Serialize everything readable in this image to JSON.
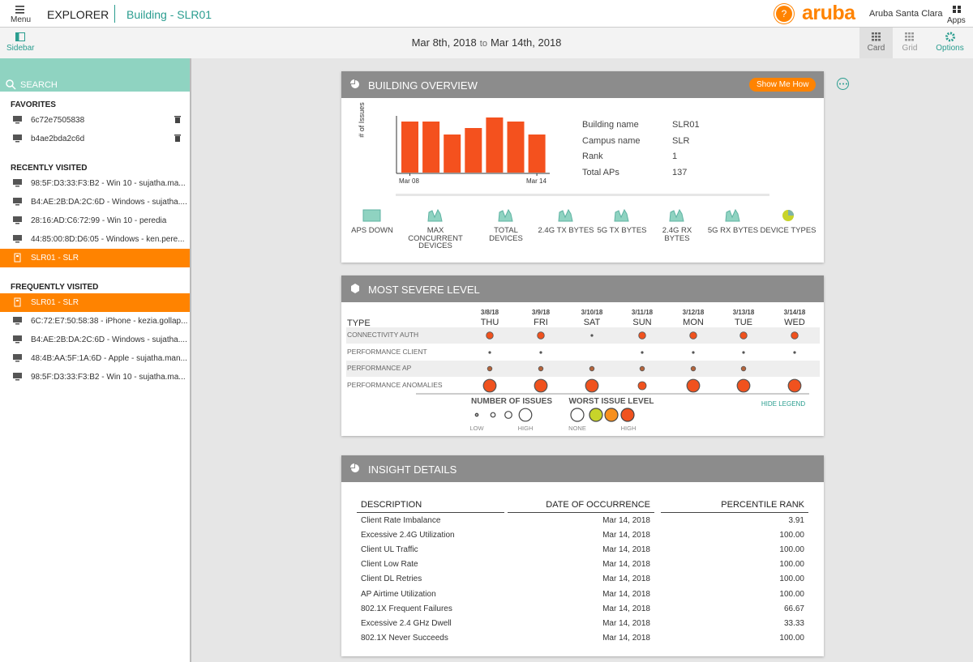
{
  "header": {
    "menu": "Menu",
    "app": "EXPLORER",
    "breadcrumb": "Building - SLR01",
    "help": "?",
    "brand": "aruba",
    "site": "Aruba Santa Clara",
    "apps": "Apps"
  },
  "toolbar": {
    "sidebar": "Sidebar",
    "date_from": "Mar 8th, 2018",
    "date_sep": "to",
    "date_to": "Mar 14th, 2018",
    "views": [
      "Card",
      "Grid",
      "Options"
    ]
  },
  "sidebar": {
    "search": "SEARCH",
    "sections": [
      {
        "title": "FAVORITES",
        "items": [
          {
            "text": "6c72e7505838",
            "icon": "device",
            "trash": true
          },
          {
            "text": "b4ae2bda2c6d",
            "icon": "device",
            "trash": true
          }
        ]
      },
      {
        "title": "RECENTLY VISITED",
        "items": [
          {
            "text": "98:5F:D3:33:F3:B2 - Win 10 - sujatha.ma...",
            "icon": "device"
          },
          {
            "text": "B4:AE:2B:DA:2C:6D - Windows - sujatha....",
            "icon": "device"
          },
          {
            "text": "28:16:AD:C6:72:99 - Win 10 - peredia",
            "icon": "device"
          },
          {
            "text": "44:85:00:8D:D6:05 - Windows - ken.pere...",
            "icon": "device"
          },
          {
            "text": "SLR01 - SLR",
            "icon": "building",
            "active": true
          }
        ]
      },
      {
        "title": "FREQUENTLY VISITED",
        "items": [
          {
            "text": "SLR01 - SLR",
            "icon": "building",
            "active": true
          },
          {
            "text": "6C:72:E7:50:58:38 - iPhone - kezia.gollap...",
            "icon": "device"
          },
          {
            "text": "B4:AE:2B:DA:2C:6D - Windows - sujatha....",
            "icon": "device"
          },
          {
            "text": "48:4B:AA:5F:1A:6D - Apple - sujatha.man...",
            "icon": "device"
          },
          {
            "text": "98:5F:D3:33:F3:B2 - Win 10 - sujatha.ma...",
            "icon": "device"
          }
        ]
      }
    ]
  },
  "overview": {
    "title": "BUILDING OVERVIEW",
    "button": "Show Me How",
    "chart_data": {
      "type": "bar",
      "y_label": "# of Issues",
      "x_start": "Mar 08",
      "x_end": "Mar 14",
      "values": [
        63,
        63,
        47,
        55,
        68,
        63,
        47
      ],
      "ylim": [
        0,
        75
      ],
      "color": "#f4511e"
    },
    "details": [
      {
        "label": "Building name",
        "value": "SLR01"
      },
      {
        "label": "Campus name",
        "value": "SLR"
      },
      {
        "label": "Rank",
        "value": "1"
      },
      {
        "label": "Total APs",
        "value": "137"
      }
    ],
    "metrics": [
      "APS DOWN",
      "MAX CONCURRENT DEVICES",
      "TOTAL DEVICES",
      "2.4G TX BYTES",
      "5G TX BYTES",
      "2.4G RX BYTES",
      "5G RX BYTES",
      "DEVICE TYPES"
    ]
  },
  "severity": {
    "title": "MOST SEVERE LEVEL",
    "type_header": "TYPE",
    "days": [
      {
        "date": "3/8/18",
        "day": "THU"
      },
      {
        "date": "3/9/18",
        "day": "FRI"
      },
      {
        "date": "3/10/18",
        "day": "SAT"
      },
      {
        "date": "3/11/18",
        "day": "SUN"
      },
      {
        "date": "3/12/18",
        "day": "MON"
      },
      {
        "date": "3/13/18",
        "day": "TUE"
      },
      {
        "date": "3/14/18",
        "day": "WED"
      }
    ],
    "rows": [
      {
        "name": "CONNECTIVITY AUTH",
        "issues": [
          3,
          3,
          1,
          3,
          3,
          3,
          3
        ]
      },
      {
        "name": "PERFORMANCE CLIENT",
        "issues": [
          1,
          1,
          null,
          1,
          1,
          1,
          1
        ]
      },
      {
        "name": "PERFORMANCE AP",
        "issues": [
          2,
          2,
          2,
          2,
          2,
          2,
          null
        ]
      },
      {
        "name": "PERFORMANCE ANOMALIES",
        "issues": [
          4,
          4,
          4,
          3.5,
          4,
          4,
          4
        ]
      }
    ],
    "legend": {
      "issues_title": "NUMBER OF ISSUES",
      "issues_sizes": [
        1,
        2,
        3,
        4
      ],
      "low": "LOW",
      "high": "HIGH",
      "level_title": "WORST ISSUE LEVEL",
      "level_colors": [
        "#ffffff",
        "#c8d42a",
        "#f7901e",
        "#f0521e"
      ],
      "none": "NONE",
      "level_high": "HIGH",
      "hide": "HIDE LEGEND"
    }
  },
  "insights": {
    "title": "INSIGHT DETAILS",
    "columns": [
      "DESCRIPTION",
      "DATE OF OCCURRENCE",
      "PERCENTILE RANK"
    ],
    "rows": [
      [
        "Client Rate Imbalance",
        "Mar 14, 2018",
        "3.91"
      ],
      [
        "Excessive 2.4G Utilization",
        "Mar 14, 2018",
        "100.00"
      ],
      [
        "Client UL Traffic",
        "Mar 14, 2018",
        "100.00"
      ],
      [
        "Client Low Rate",
        "Mar 14, 2018",
        "100.00"
      ],
      [
        "Client DL Retries",
        "Mar 14, 2018",
        "100.00"
      ],
      [
        "AP Airtime Utilization",
        "Mar 14, 2018",
        "100.00"
      ],
      [
        "802.1X Frequent Failures",
        "Mar 14, 2018",
        "66.67"
      ],
      [
        "Excessive 2.4 GHz Dwell",
        "Mar 14, 2018",
        "33.33"
      ],
      [
        "802.1X Never Succeeds",
        "Mar 14, 2018",
        "100.00"
      ]
    ]
  }
}
